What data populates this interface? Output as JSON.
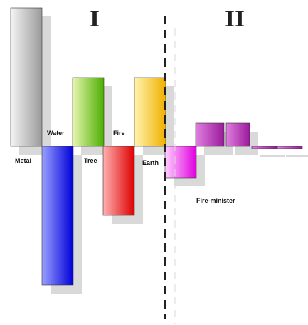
{
  "chart_data": {
    "type": "bar",
    "title": "",
    "xlabel": "",
    "ylabel": "",
    "sections": [
      {
        "label": "I"
      },
      {
        "label": "II"
      }
    ],
    "categories": [
      "Metal",
      "Water",
      "Tree",
      "Fire",
      "Earth",
      "Fire-minister",
      "",
      "",
      "",
      ""
    ],
    "values": [
      195,
      -195,
      97,
      -97,
      97,
      -44,
      33,
      33,
      -3,
      -3
    ],
    "section_of_bar": [
      0,
      0,
      0,
      0,
      0,
      1,
      1,
      1,
      1,
      1
    ],
    "ylim": [
      -230,
      210
    ],
    "colors": {
      "Metal": [
        "#f4f4f4",
        "#9a9a9a"
      ],
      "Water": [
        "#9aa0ff",
        "#0000d8"
      ],
      "Tree": [
        "#e8f7b0",
        "#4cae00"
      ],
      "Fire": [
        "#ffb0b0",
        "#dd0000"
      ],
      "Earth": [
        "#fff3b0",
        "#f0b000"
      ],
      "Fire-minister": [
        "#ffd0ff",
        "#e000e0"
      ],
      "minor": [
        "#e07fe0",
        "#9a1a9a"
      ],
      "shadow": "#d9d9d9",
      "divider": "#222222"
    },
    "grid": false,
    "legend": "none"
  }
}
